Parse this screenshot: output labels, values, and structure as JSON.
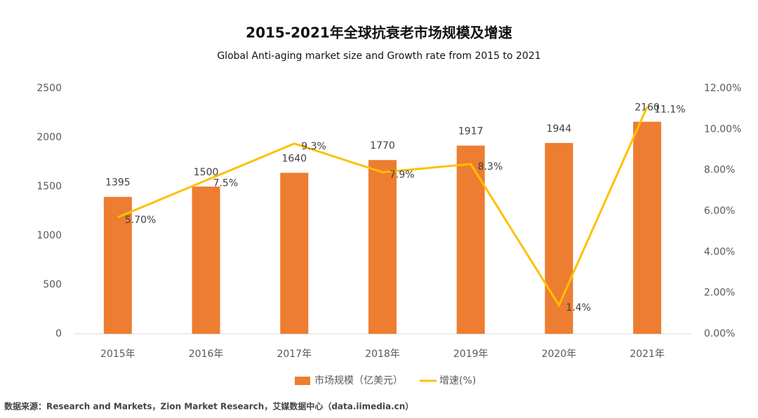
{
  "chart_data": {
    "type": "bar",
    "title": "2015-2021年全球抗衰老市场规模及增速",
    "subtitle": "Global Anti-aging market size and Growth rate from 2015 to 2021",
    "categories": [
      "2015年",
      "2016年",
      "2017年",
      "2018年",
      "2019年",
      "2020年",
      "2021年"
    ],
    "series": [
      {
        "name": "市场规模（亿美元）",
        "color": "#ed7d31",
        "type": "bar",
        "values": [
          1395,
          1500,
          1640,
          1770,
          1917,
          1944,
          2160
        ]
      },
      {
        "name": "增速(%)",
        "color": "#ffc000",
        "type": "line",
        "axis": "y2",
        "values": [
          5.7,
          7.5,
          9.3,
          7.9,
          8.3,
          1.4,
          11.1
        ],
        "value_labels": [
          "5.70%",
          "7.5%",
          "9.3%",
          "7.9%",
          "8.3%",
          "1.4%",
          "11.1%"
        ]
      }
    ],
    "ylim": [
      0,
      2500
    ],
    "yticks": [
      0,
      500,
      1000,
      1500,
      2000,
      2500
    ],
    "y2lim": [
      0,
      12
    ],
    "y2ticks": [
      {
        "value": 0,
        "label": "0.00%"
      },
      {
        "value": 2,
        "label": "2.00%"
      },
      {
        "value": 4,
        "label": "4.00%"
      },
      {
        "value": 6,
        "label": "6.00%"
      },
      {
        "value": 8,
        "label": "8.00%"
      },
      {
        "value": 10,
        "label": "10.00%"
      },
      {
        "value": 12,
        "label": "12.00%"
      }
    ],
    "grid": false,
    "legend": "bottom",
    "source": "数据来源：Research and Markets，Zion Market Research，艾媒数据中心（data.iimedia.cn）"
  }
}
